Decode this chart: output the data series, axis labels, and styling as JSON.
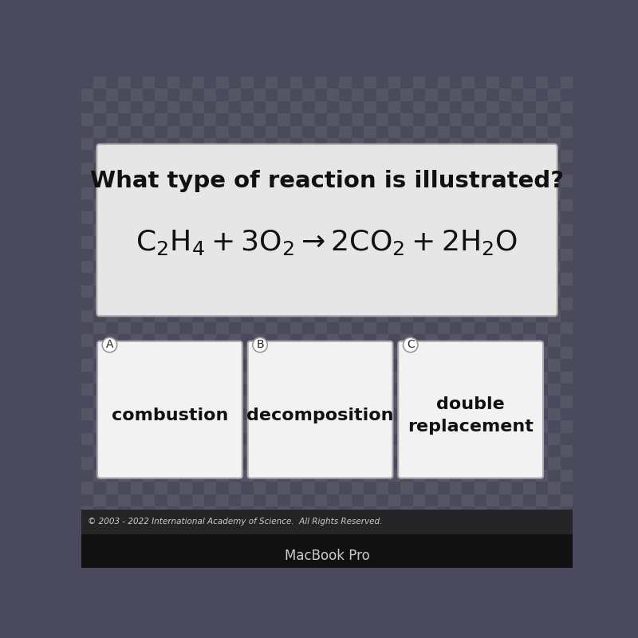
{
  "title": "What type of reaction is illustrated?",
  "equation_mathtext": "$\\mathregular{C_2H_4 + 3O_2 \\rightarrow 2CO_2 + 2H_2O}$",
  "options": [
    "combustion",
    "decomposition",
    "double\nreplacement"
  ],
  "option_labels": [
    "A",
    "B",
    "C"
  ],
  "question_box_bg": "#e6e6e6",
  "question_box_border": "#aaaaaa",
  "answer_box_bg": "#f2f2f2",
  "answer_box_border": "#aaaaaa",
  "tile_color1": "#555566",
  "tile_color2": "#4a4a5c",
  "bottom_bar_color": "#1a1a1a",
  "macbook_bar_color": "#2a2a2a",
  "title_fontsize": 21,
  "eq_fontsize": 26,
  "option_fontsize": 16,
  "label_fontsize": 10,
  "copyright_text": "© 2003 - 2022 International Academy of Science.  All Rights Reserved.",
  "macbook_text": "MacBook Pro"
}
